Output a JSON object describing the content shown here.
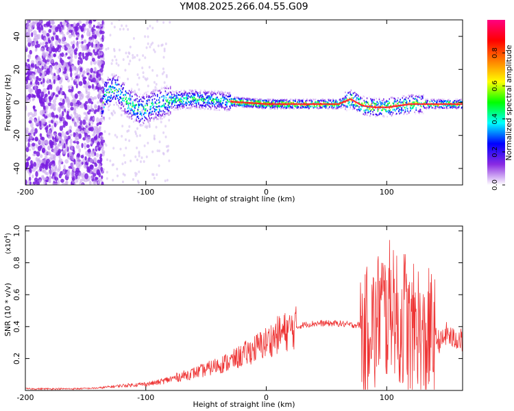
{
  "title": "YM08.2025.266.04.55.G09",
  "chart_data": [
    {
      "type": "heatmap",
      "title": "YM08.2025.266.04.55.G09",
      "xlabel": "Height of straight line (km)",
      "ylabel": "Frequency (Hz)",
      "xlim": [
        -200,
        163
      ],
      "ylim": [
        -50,
        50
      ],
      "xticks": [
        -200,
        -100,
        0,
        100
      ],
      "yticks": [
        -40,
        -20,
        0,
        20,
        40
      ],
      "colorbar": {
        "label": "Normalized spectral amplitude",
        "range": [
          0,
          1
        ],
        "ticks": [
          "0.0",
          "0.2",
          "0.4",
          "0.6",
          "0.8"
        ],
        "colors": [
          "#ffffff",
          "#8a2be2",
          "#0000ff",
          "#00ffff",
          "#00ff00",
          "#ffff00",
          "#ff8000",
          "#ff0000",
          "#ff0080"
        ]
      },
      "description_values": {
        "noise_region_x": [
          -200,
          -140
        ],
        "signal_center_freq_hz": [
          [
            -135,
            5
          ],
          [
            -125,
            8
          ],
          [
            -115,
            0
          ],
          [
            -105,
            -5
          ],
          [
            -95,
            -2
          ],
          [
            -80,
            1
          ],
          [
            -60,
            2
          ],
          [
            -40,
            1
          ],
          [
            -20,
            0
          ],
          [
            0,
            -1
          ],
          [
            20,
            -1
          ],
          [
            40,
            -1
          ],
          [
            60,
            -1
          ],
          [
            70,
            2
          ],
          [
            80,
            -2
          ],
          [
            90,
            -3
          ],
          [
            100,
            -3
          ],
          [
            110,
            -2
          ],
          [
            120,
            -1
          ],
          [
            140,
            -1
          ],
          [
            160,
            -1
          ]
        ]
      }
    },
    {
      "type": "line",
      "xlabel": "Height of straight line (km)",
      "ylabel": "SNR (10 * v/v)",
      "yscale_label": "(x10",
      "yscale_exp": "4",
      "yscale_close": ")",
      "xlim": [
        -200,
        163
      ],
      "ylim": [
        0,
        1.03
      ],
      "xticks": [
        -200,
        -100,
        0,
        100
      ],
      "yticks": [
        0.2,
        0.4,
        0.6,
        0.8,
        1.0
      ],
      "ytick_labels": [
        "0.2",
        "0.4",
        "0.6",
        "0.8",
        "1.0"
      ],
      "series": [
        {
          "name": "SNR",
          "color": "#ee3333",
          "x": [
            -200,
            -180,
            -160,
            -140,
            -120,
            -100,
            -90,
            -80,
            -70,
            -60,
            -50,
            -40,
            -30,
            -20,
            -10,
            0,
            10,
            20,
            30,
            40,
            50,
            60,
            70,
            78,
            82,
            86,
            90,
            95,
            100,
            105,
            110,
            115,
            120,
            125,
            130,
            135,
            140,
            145,
            150,
            155,
            160,
            163
          ],
          "values": [
            0.01,
            0.01,
            0.01,
            0.015,
            0.03,
            0.04,
            0.05,
            0.07,
            0.09,
            0.11,
            0.13,
            0.16,
            0.18,
            0.22,
            0.26,
            0.3,
            0.35,
            0.38,
            0.41,
            0.42,
            0.42,
            0.42,
            0.41,
            0.41,
            0.3,
            0.5,
            0.35,
            0.55,
            0.45,
            0.6,
            0.35,
            0.5,
            0.3,
            0.45,
            0.25,
            0.35,
            0.33,
            0.3,
            0.36,
            0.32,
            0.33,
            0.3
          ]
        }
      ]
    }
  ]
}
